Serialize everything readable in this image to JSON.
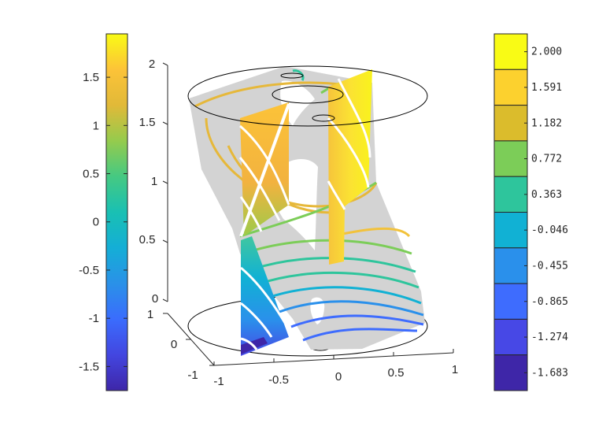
{
  "chart_data": [
    {
      "type": "surface",
      "x_ticks": [
        "-1",
        "-0.5",
        "0",
        "0.5",
        "1"
      ],
      "y_ticks": [
        "-1",
        "0",
        "1"
      ],
      "z_ticks": [
        "0",
        "0.5",
        "1",
        "1.5",
        "2"
      ],
      "xlim": [
        -1,
        1
      ],
      "ylim": [
        -1,
        1
      ],
      "zlim": [
        0,
        2
      ],
      "color_range": [
        -1.683,
        2.0
      ],
      "surface_color": "#d3d3d3",
      "contour_levels": [
        -1.683,
        -1.274,
        -0.865,
        -0.455,
        -0.046,
        0.363,
        0.772,
        1.182,
        1.591,
        2.0
      ],
      "contour_colors": [
        "#3e26a8",
        "#4748e6",
        "#3e6cfe",
        "#2a90eb",
        "#11b1d4",
        "#2ec59c",
        "#7ccd58",
        "#dbbc2c",
        "#fcd12e",
        "#f9fb15"
      ],
      "slice_planes": [
        "x = -0.5",
        "x = 0",
        "x = 0.5 (upper)"
      ],
      "grid": false
    },
    {
      "type": "colorbar",
      "colormap": "parula",
      "range": [
        -1.75,
        1.95
      ],
      "ticks": [
        "1.5",
        "1",
        "0.5",
        "0",
        "-0.5",
        "-1",
        "-1.5"
      ],
      "tick_values": [
        1.5,
        1,
        0.5,
        0,
        -0.5,
        -1,
        -1.5
      ],
      "placement": "left"
    },
    {
      "type": "colorbar",
      "colormap": "parula (discrete)",
      "levels": [
        "2.000",
        "1.591",
        "1.182",
        "0.772",
        "0.363",
        "-0.046",
        "-0.455",
        "-0.865",
        "-1.274",
        "-1.683"
      ],
      "colors": [
        "#f9fb15",
        "#fcd12e",
        "#dbbc2c",
        "#7ccd58",
        "#2ec59c",
        "#11b1d4",
        "#2a90eb",
        "#3e6cfe",
        "#4748e6",
        "#3e26a8"
      ],
      "placement": "right"
    }
  ]
}
